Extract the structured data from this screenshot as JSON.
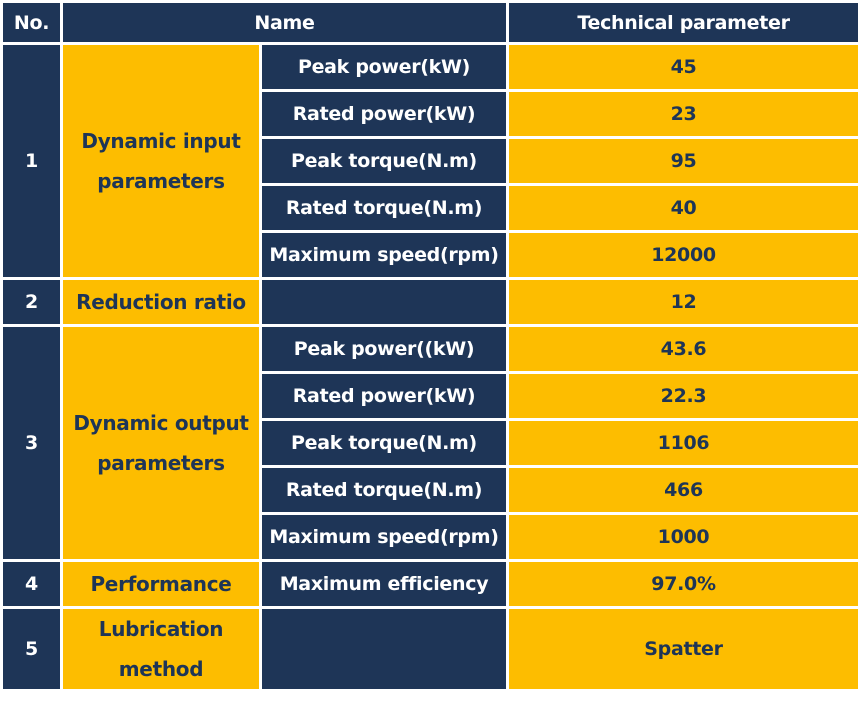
{
  "header": {
    "no": "No.",
    "name": "Name",
    "param": "Technical parameter"
  },
  "groups": [
    {
      "no": "1",
      "name": "Dynamic input parameters",
      "rows": [
        {
          "sub": "Peak power(kW)",
          "value": "45"
        },
        {
          "sub": "Rated power(kW)",
          "value": "23"
        },
        {
          "sub": "Peak torque(N.m)",
          "value": "95"
        },
        {
          "sub": "Rated torque(N.m)",
          "value": "40"
        },
        {
          "sub": "Maximum speed(rpm)",
          "value": "12000"
        }
      ]
    },
    {
      "no": "2",
      "name": "Reduction ratio",
      "rows": [
        {
          "sub": "",
          "value": "12"
        }
      ]
    },
    {
      "no": "3",
      "name": "Dynamic output parameters",
      "rows": [
        {
          "sub": "Peak power((kW)",
          "value": "43.6"
        },
        {
          "sub": "Rated power(kW)",
          "value": "22.3"
        },
        {
          "sub": "Peak torque(N.m)",
          "value": "1106"
        },
        {
          "sub": "Rated torque(N.m)",
          "value": "466"
        },
        {
          "sub": "Maximum speed(rpm)",
          "value": "1000"
        }
      ]
    },
    {
      "no": "4",
      "name": "Performance",
      "rows": [
        {
          "sub": "Maximum efficiency",
          "value": "97.0%"
        }
      ]
    },
    {
      "no": "5",
      "name": "Lubrication method",
      "rows": [
        {
          "sub": "",
          "value": "Spatter"
        }
      ]
    }
  ],
  "colors": {
    "navy": "#1e3557",
    "gold": "#fdbd00",
    "border": "#ffffff"
  }
}
